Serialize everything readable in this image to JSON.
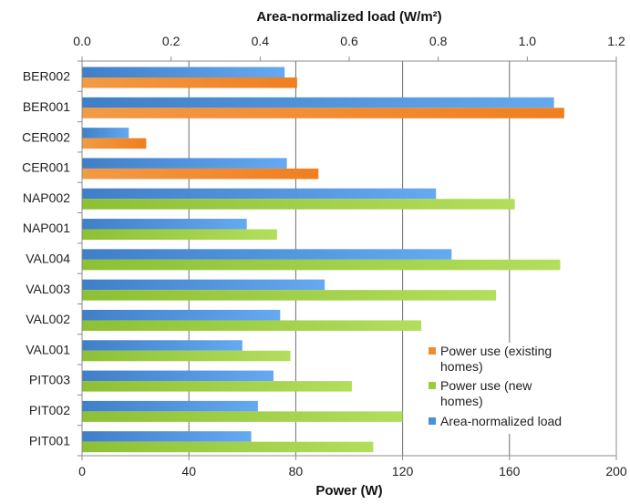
{
  "chart_data": {
    "type": "bar",
    "orientation": "horizontal",
    "categories": [
      "BER002",
      "BER001",
      "CER002",
      "CER001",
      "NAP002",
      "NAP001",
      "VAL004",
      "VAL003",
      "VAL002",
      "VAL001",
      "PIT003",
      "PIT002",
      "PIT001"
    ],
    "bottom_axis": {
      "title": "Power (W)",
      "range": [
        0,
        200
      ],
      "ticks": [
        "0",
        "40",
        "80",
        "120",
        "160",
        "200"
      ]
    },
    "top_axis": {
      "title": "Area-normalized load (W/m²)",
      "range": [
        0,
        1.2
      ],
      "ticks": [
        "0.0",
        "0.2",
        "0.4",
        "0.6",
        "0.8",
        "1.0",
        "1.2"
      ]
    },
    "grid": "vertical",
    "legend_position": "bottom-right",
    "series": [
      {
        "name": "Power use (existing homes)",
        "axis": "bottom",
        "color": "#f08c30",
        "values": [
          80.5,
          180.5,
          24,
          88.5,
          null,
          null,
          null,
          null,
          null,
          null,
          null,
          null,
          null
        ]
      },
      {
        "name": "Power use (new homes)",
        "axis": "bottom",
        "color": "#9bcc3c",
        "values": [
          null,
          null,
          null,
          null,
          162,
          73,
          179,
          155,
          127,
          78,
          101,
          120,
          109
        ]
      },
      {
        "name": "Area-normalized load",
        "axis": "top",
        "color": "#4a8fdc",
        "values": [
          0.455,
          1.06,
          0.105,
          0.46,
          0.795,
          0.37,
          0.83,
          0.545,
          0.445,
          0.36,
          0.43,
          0.395,
          0.38
        ]
      }
    ]
  }
}
